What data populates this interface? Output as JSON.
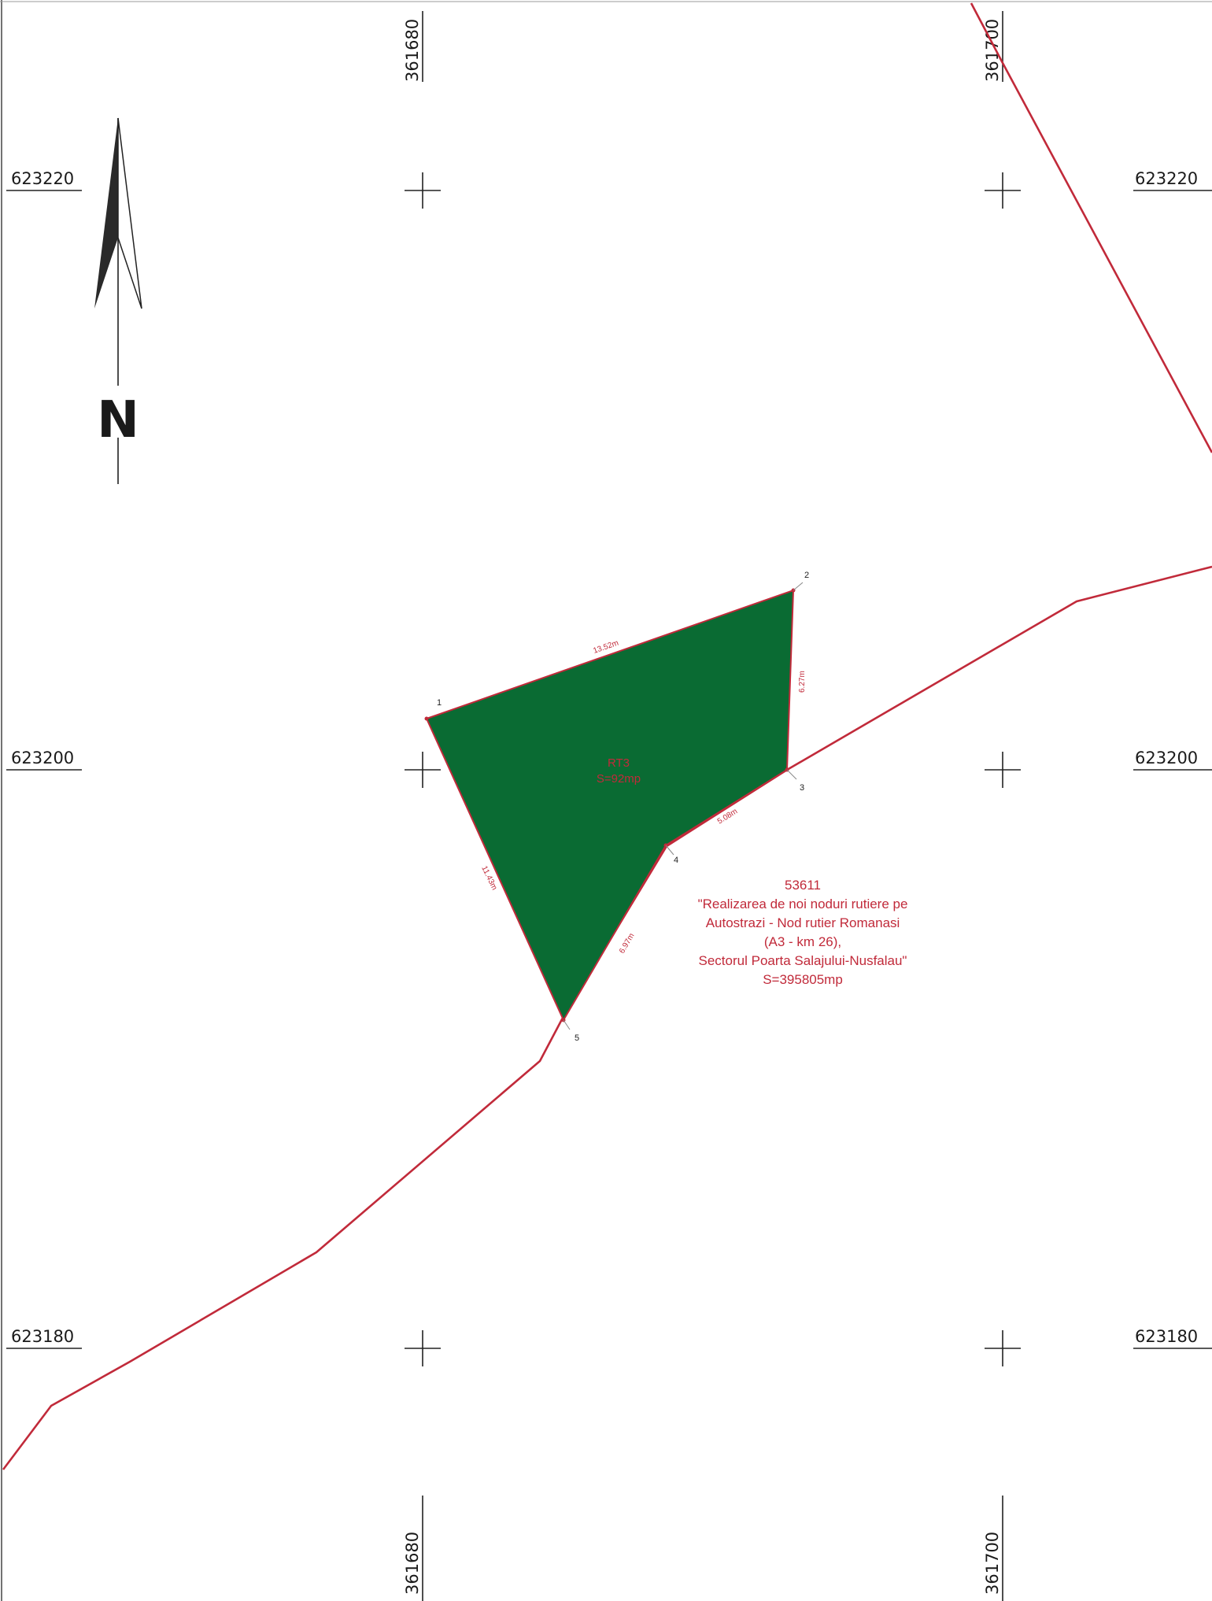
{
  "grid": {
    "easting_top": [
      "361680",
      "361700"
    ],
    "easting_bottom": [
      "361680",
      "361700"
    ],
    "northing_left": [
      "623220",
      "623200",
      "623180"
    ],
    "northing_right": [
      "623220",
      "623200",
      "623180"
    ]
  },
  "north_arrow": {
    "label": "N"
  },
  "parcel": {
    "name": "RT3",
    "area": "S=92mp",
    "fill_color": "#0a6b33",
    "vertices": [
      "1",
      "2",
      "3",
      "4",
      "5"
    ],
    "sides": [
      "13.52m",
      "6.27m",
      "5.08m",
      "6.97m",
      "11.43m"
    ]
  },
  "lot": {
    "number": "53611",
    "description_lines": [
      "\"Realizarea de noi noduri rutiere pe",
      "Autostrazi - Nod rutier Romanasi",
      "(A3 - km 26),",
      "Sectorul Poarta Salajului-Nusfalau\""
    ],
    "area": "S=395805mp",
    "boundary_color": "#c12a3a"
  }
}
